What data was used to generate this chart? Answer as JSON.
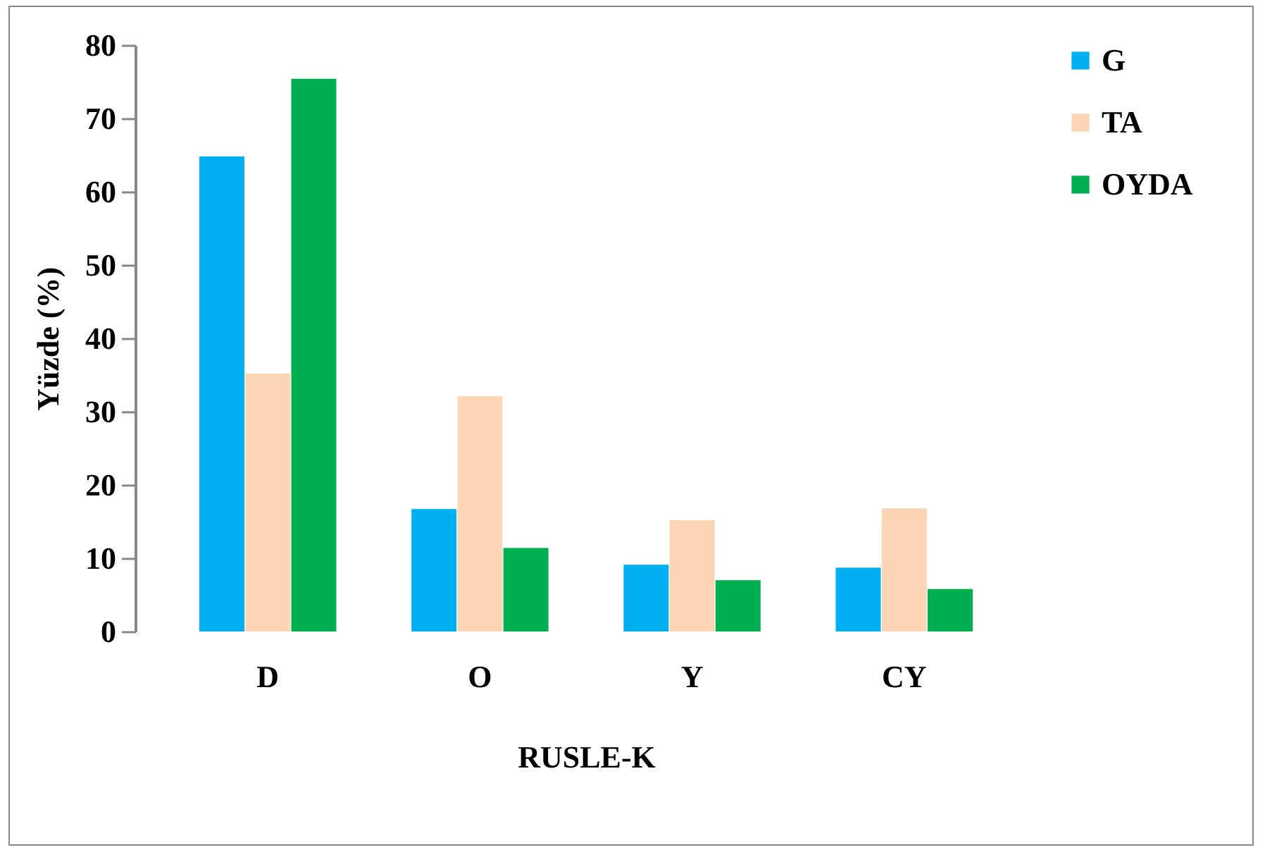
{
  "chart_data": {
    "type": "bar",
    "xlabel": "RUSLE-K",
    "ylabel": "Yüzde (%)",
    "categories": [
      "D",
      "O",
      "Y",
      "CY"
    ],
    "series": [
      {
        "name": "G",
        "color": "#00b0f0",
        "values": [
          64.8,
          16.7,
          9.1,
          8.7
        ]
      },
      {
        "name": "TA",
        "color": "#fcd5b5",
        "values": [
          35.2,
          32.1,
          15.2,
          16.8
        ]
      },
      {
        "name": "OYDA",
        "color": "#00b050",
        "values": [
          75.4,
          11.4,
          7.0,
          5.8
        ]
      }
    ],
    "ylim": [
      0,
      80
    ],
    "yticks": [
      0,
      10,
      20,
      30,
      40,
      50,
      60,
      70,
      80
    ],
    "grid": false,
    "legend": "right"
  }
}
